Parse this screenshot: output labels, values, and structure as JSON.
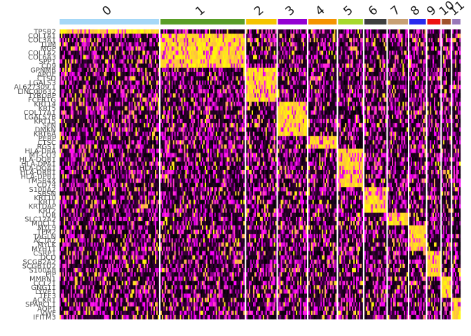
{
  "chart_data": {
    "type": "heatmap",
    "title": "",
    "xlabel": "",
    "ylabel": "",
    "color_scale": {
      "low": "#000000",
      "mid": "#ff00ff",
      "high": "#ffff00"
    },
    "clusters": [
      {
        "label": "0",
        "cells": 144,
        "color": "#a6d8f7"
      },
      {
        "label": "1",
        "cells": 122,
        "color": "#5a9e28"
      },
      {
        "label": "2",
        "cells": 44,
        "color": "#f5c400"
      },
      {
        "label": "3",
        "cells": 42,
        "color": "#9400d3"
      },
      {
        "label": "4",
        "cells": 41,
        "color": "#f59300"
      },
      {
        "label": "5",
        "cells": 36,
        "color": "#a7d92c"
      },
      {
        "label": "6",
        "cells": 32,
        "color": "#3f3f3f"
      },
      {
        "label": "7",
        "cells": 29,
        "color": "#c8a074"
      },
      {
        "label": "8",
        "cells": 24,
        "color": "#2a2aee"
      },
      {
        "label": "9",
        "cells": 19,
        "color": "#ee1111"
      },
      {
        "label": "10",
        "cells": 13,
        "color": "#a0522d"
      },
      {
        "label": "11",
        "cells": 12,
        "color": "#9878b8"
      }
    ],
    "genes": [
      {
        "name": "TPSB2",
        "cluster": "0"
      },
      {
        "name": "COL1A1",
        "cluster": "1"
      },
      {
        "name": "COL3A1",
        "cluster": "1"
      },
      {
        "name": "LUM",
        "cluster": "1"
      },
      {
        "name": "MGP",
        "cluster": "1"
      },
      {
        "name": "COL1A2",
        "cluster": "1"
      },
      {
        "name": "COL6A3",
        "cluster": "1"
      },
      {
        "name": "SPP1",
        "cluster": "1"
      },
      {
        "name": "CD9",
        "cluster": "1"
      },
      {
        "name": "GPNMB",
        "cluster": "2"
      },
      {
        "name": "APOE",
        "cluster": "2"
      },
      {
        "name": "CTSD",
        "cluster": "2"
      },
      {
        "name": "LGALS3",
        "cluster": "2"
      },
      {
        "name": "AL627309.1",
        "cluster": "2"
      },
      {
        "name": "LINC00632",
        "cluster": "2"
      },
      {
        "name": "TYROBP",
        "cluster": "2"
      },
      {
        "name": "FCER1G",
        "cluster": "2"
      },
      {
        "name": "KRT14",
        "cluster": "3"
      },
      {
        "name": "KRT5",
        "cluster": "3"
      },
      {
        "name": "COL17A1",
        "cluster": "3"
      },
      {
        "name": "LGALS7B",
        "cluster": "3"
      },
      {
        "name": "KRT15",
        "cluster": "3"
      },
      {
        "name": "SFN",
        "cluster": "3"
      },
      {
        "name": "DMKN",
        "cluster": "3"
      },
      {
        "name": "KRT6A",
        "cluster": "3"
      },
      {
        "name": "PERP",
        "cluster": "4"
      },
      {
        "name": "CTSC",
        "cluster": "4"
      },
      {
        "name": "RGS1",
        "cluster": "4"
      },
      {
        "name": "HLA-DRA",
        "cluster": "5"
      },
      {
        "name": "MT-CO3",
        "cluster": "5"
      },
      {
        "name": "HLA-DQB1",
        "cluster": "5"
      },
      {
        "name": "HLA-DPA1",
        "cluster": "5"
      },
      {
        "name": "HLA-DQA1",
        "cluster": "5"
      },
      {
        "name": "HLA-DRB1",
        "cluster": "5"
      },
      {
        "name": "HLA-DPB1",
        "cluster": "5"
      },
      {
        "name": "TMSB4X",
        "cluster": "5"
      },
      {
        "name": "CD74",
        "cluster": "5"
      },
      {
        "name": "S100A2",
        "cluster": "6"
      },
      {
        "name": "SBSN",
        "cluster": "6"
      },
      {
        "name": "KRT10",
        "cluster": "6"
      },
      {
        "name": "KRT1",
        "cluster": "6"
      },
      {
        "name": "KRTDAP",
        "cluster": "6"
      },
      {
        "name": "KRT2",
        "cluster": "6"
      },
      {
        "name": "LOR",
        "cluster": "7"
      },
      {
        "name": "SLC12A2",
        "cluster": "7"
      },
      {
        "name": "MUCL1",
        "cluster": "7"
      },
      {
        "name": "MYL9",
        "cluster": "8"
      },
      {
        "name": "TPM2",
        "cluster": "8"
      },
      {
        "name": "TAGLN",
        "cluster": "8"
      },
      {
        "name": "ACTA2",
        "cluster": "8"
      },
      {
        "name": "MYLK",
        "cluster": "8"
      },
      {
        "name": "MYH11",
        "cluster": "8"
      },
      {
        "name": "CSRP1",
        "cluster": "9"
      },
      {
        "name": "DCD",
        "cluster": "9"
      },
      {
        "name": "SCGB2A2",
        "cluster": "9"
      },
      {
        "name": "SCGB1D2",
        "cluster": "9"
      },
      {
        "name": "S100A8",
        "cluster": "9"
      },
      {
        "name": "PIP",
        "cluster": "9"
      },
      {
        "name": "MMRN1",
        "cluster": "10"
      },
      {
        "name": "CCL21",
        "cluster": "10"
      },
      {
        "name": "GNG11",
        "cluster": "10"
      },
      {
        "name": "LYVE1",
        "cluster": "10"
      },
      {
        "name": "TFF3",
        "cluster": "10"
      },
      {
        "name": "ACKR1",
        "cluster": "11"
      },
      {
        "name": "SPARCL1",
        "cluster": "11"
      },
      {
        "name": "AQP1",
        "cluster": "11"
      },
      {
        "name": "VWF",
        "cluster": "11"
      },
      {
        "name": "IFITM3",
        "cluster": "11"
      }
    ]
  }
}
